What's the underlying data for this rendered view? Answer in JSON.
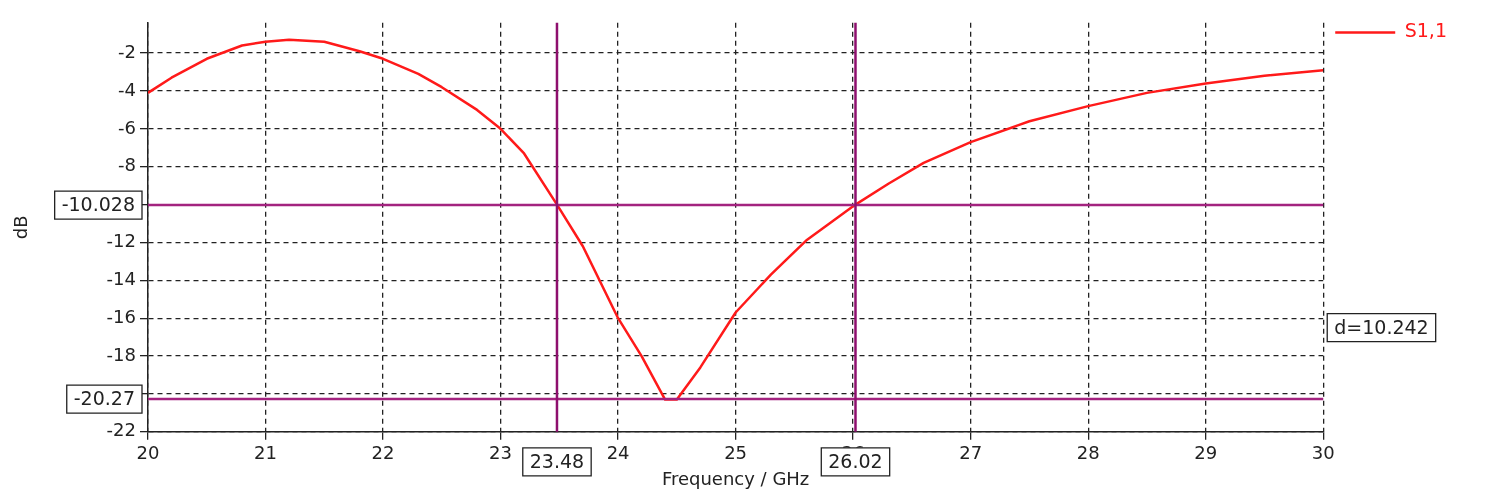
{
  "chart_data": {
    "type": "line",
    "xlabel": "Frequency / GHz",
    "ylabel": "dB",
    "xlim": [
      20,
      30
    ],
    "xticks": [
      20,
      21,
      22,
      23,
      24,
      25,
      26,
      27,
      28,
      29,
      30
    ],
    "ylim": [
      -22,
      -0.4
    ],
    "yticks": [
      -22,
      {
        "value": -20,
        "label": null
      },
      -18,
      -16,
      -14,
      -12,
      {
        "value": -10,
        "label": null
      },
      -8,
      -6,
      -4,
      -2
    ],
    "grid": true,
    "legend": "top right",
    "marker": "none",
    "line_style": "solid",
    "series": [
      {
        "name": "S1,1",
        "color": "#ff1a1a",
        "x": [
          20,
          20.2,
          20.5,
          20.8,
          21,
          21.2,
          21.5,
          21.8,
          22,
          22.3,
          22.5,
          22.8,
          23,
          23.2,
          23.48,
          23.7,
          24,
          24.2,
          24.4,
          24.5,
          24.7,
          25,
          25.3,
          25.6,
          26.02,
          26.3,
          26.6,
          27,
          27.5,
          28,
          28.5,
          29,
          29.5,
          30
        ],
        "values": [
          -4.1,
          -3.3,
          -2.3,
          -1.6,
          -1.4,
          -1.3,
          -1.4,
          -1.9,
          -2.3,
          -3.1,
          -3.8,
          -5,
          -6,
          -7.3,
          -10,
          -12.2,
          -16,
          -18,
          -20.3,
          -20.3,
          -18.6,
          -15.7,
          -13.7,
          -11.9,
          -10,
          -8.9,
          -7.8,
          -6.7,
          -5.6,
          -4.8,
          -4.1,
          -3.6,
          -3.2,
          -2.9
        ]
      }
    ],
    "ref_lines": [
      {
        "axis": "y",
        "value": -10.028,
        "label": "-10.028",
        "color": "#a3237f"
      },
      {
        "axis": "y",
        "value": -20.27,
        "label": "-20.27",
        "color": "#a3237f"
      },
      {
        "axis": "x",
        "value": 23.48,
        "label": "23.48",
        "color": "#8e0f6e"
      },
      {
        "axis": "x",
        "value": 26.02,
        "label": "26.02",
        "color": "#8e0f6e"
      }
    ],
    "annotations": [
      "d=10.242"
    ]
  }
}
